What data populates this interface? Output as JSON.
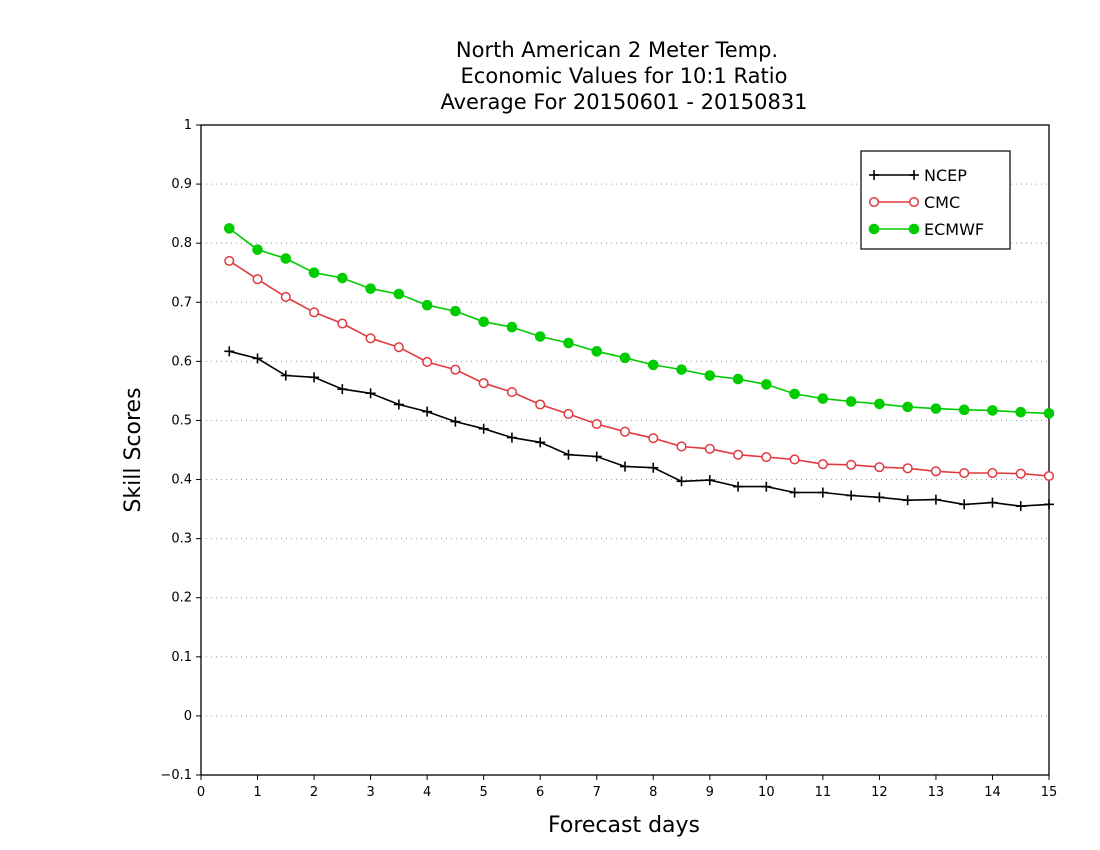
{
  "chart_data": {
    "type": "line",
    "title_lines": [
      "North American 2 Meter Temp.",
      "Economic Values for 10:1 Ratio",
      "Average For 20150601 - 20150831"
    ],
    "xlabel": "Forecast days",
    "ylabel": "Skill Scores",
    "xlim": [
      0,
      15
    ],
    "ylim": [
      -0.1,
      1
    ],
    "x_ticks": [
      0,
      1,
      2,
      3,
      4,
      5,
      6,
      7,
      8,
      9,
      10,
      11,
      12,
      13,
      14,
      15
    ],
    "y_ticks": [
      -0.1,
      0,
      0.1,
      0.2,
      0.3,
      0.4,
      0.5,
      0.6,
      0.7,
      0.8,
      0.9,
      1
    ],
    "y_tick_labels": [
      "−0.1",
      "0",
      "0.1",
      "0.2",
      "0.3",
      "0.4",
      "0.5",
      "0.6",
      "0.7",
      "0.8",
      "0.9",
      "1"
    ],
    "grid": "dotted horizontal",
    "legend_position": "top-right",
    "x": [
      0.5,
      1,
      1.5,
      2,
      2.5,
      3,
      3.5,
      4,
      4.5,
      5,
      5.5,
      6,
      6.5,
      7,
      7.5,
      8,
      8.5,
      9,
      9.5,
      10,
      10.5,
      11,
      11.5,
      12,
      12.5,
      13,
      13.5,
      14,
      14.5,
      15
    ],
    "series": [
      {
        "name": "NCEP",
        "color": "#000000",
        "marker": "plus",
        "values": [
          0.617,
          0.605,
          0.576,
          0.573,
          0.553,
          0.546,
          0.527,
          0.515,
          0.498,
          0.486,
          0.471,
          0.463,
          0.442,
          0.439,
          0.422,
          0.42,
          0.397,
          0.399,
          0.388,
          0.388,
          0.378,
          0.378,
          0.373,
          0.37,
          0.365,
          0.366,
          0.358,
          0.361,
          0.355,
          0.358
        ]
      },
      {
        "name": "CMC",
        "color": "#e0393e",
        "marker": "open-circle",
        "values": [
          0.77,
          0.739,
          0.709,
          0.683,
          0.664,
          0.639,
          0.624,
          0.599,
          0.586,
          0.563,
          0.548,
          0.527,
          0.511,
          0.494,
          0.481,
          0.47,
          0.456,
          0.452,
          0.442,
          0.438,
          0.434,
          0.426,
          0.425,
          0.421,
          0.419,
          0.414,
          0.411,
          0.411,
          0.41,
          0.406
        ]
      },
      {
        "name": "ECMWF",
        "color": "#00cc00",
        "marker": "filled-circle",
        "values": [
          0.825,
          0.789,
          0.774,
          0.75,
          0.741,
          0.723,
          0.714,
          0.695,
          0.685,
          0.667,
          0.658,
          0.642,
          0.631,
          0.617,
          0.606,
          0.594,
          0.586,
          0.576,
          0.57,
          0.561,
          0.545,
          0.537,
          0.532,
          0.528,
          0.523,
          0.52,
          0.518,
          0.517,
          0.514,
          0.512
        ]
      }
    ]
  }
}
